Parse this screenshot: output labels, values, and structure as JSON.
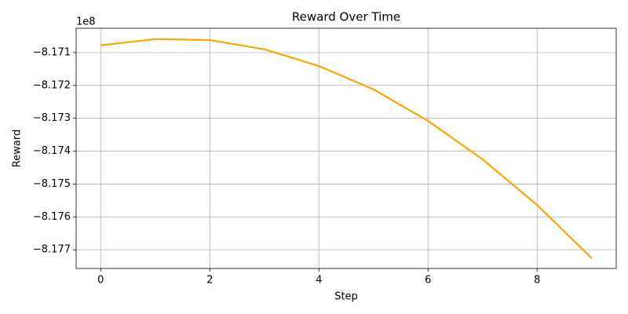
{
  "chart_data": {
    "type": "line",
    "title": "Reward Over Time",
    "x_label": "Step",
    "y_label": "Reward",
    "y_offset_label": "1e8",
    "x": [
      0,
      1,
      2,
      3,
      4,
      5,
      6,
      7,
      8,
      9
    ],
    "series": [
      {
        "name": "Reward",
        "color": "#ffa500",
        "values": [
          -817078000,
          -817059000,
          -817062000,
          -817090000,
          -817141000,
          -817212000,
          -817308000,
          -817425000,
          -817564000,
          -817726000
        ]
      }
    ],
    "xlim": [
      -0.45,
      9.45
    ],
    "xticks": [
      0,
      2,
      4,
      6,
      8
    ],
    "ylim": [
      -817757000,
      -817026000
    ],
    "yticks": [
      {
        "value": -817100000,
        "label": "−8.171"
      },
      {
        "value": -817200000,
        "label": "−8.172"
      },
      {
        "value": -817300000,
        "label": "−8.173"
      },
      {
        "value": -817400000,
        "label": "−8.174"
      },
      {
        "value": -817500000,
        "label": "−8.175"
      },
      {
        "value": -817600000,
        "label": "−8.176"
      },
      {
        "value": -817700000,
        "label": "−8.177"
      }
    ],
    "grid": true
  }
}
